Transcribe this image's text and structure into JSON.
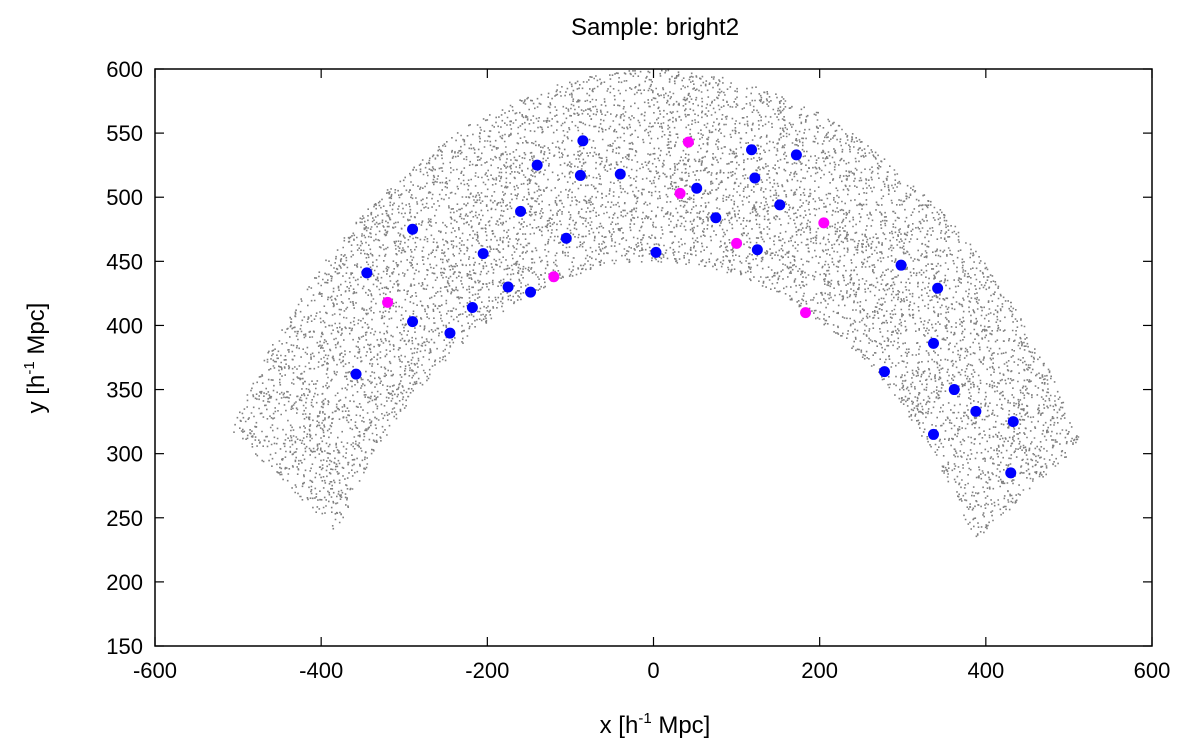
{
  "chart_data": {
    "type": "scatter",
    "title": "Sample: bright2",
    "xlabel": {
      "prefix": "x [h",
      "sup": "-1",
      "suffix": " Mpc]"
    },
    "ylabel": {
      "prefix": "y [h",
      "sup": "-1",
      "suffix": " Mpc]"
    },
    "xlim": [
      -600,
      600
    ],
    "ylim": [
      150,
      600
    ],
    "xticks": [
      -600,
      -400,
      -200,
      0,
      200,
      400,
      600
    ],
    "yticks": [
      150,
      200,
      250,
      300,
      350,
      400,
      450,
      500,
      550,
      600
    ],
    "grid": false,
    "legend": "none",
    "background_sample": {
      "shape": "annular sector",
      "center": [
        0,
        0
      ],
      "inner_radius": 450,
      "outer_radius": 600,
      "angle_range_deg": [
        31,
        148
      ],
      "color": "#808080"
    },
    "series": [
      {
        "color": "#0000ff",
        "points": [
          [
            -85,
            544
          ],
          [
            -140,
            525
          ],
          [
            -88,
            517
          ],
          [
            -40,
            518
          ],
          [
            -160,
            489
          ],
          [
            -105,
            468
          ],
          [
            -205,
            456
          ],
          [
            -290,
            475
          ],
          [
            -345,
            441
          ],
          [
            -175,
            430
          ],
          [
            -148,
            426
          ],
          [
            -218,
            414
          ],
          [
            -290,
            403
          ],
          [
            -245,
            394
          ],
          [
            -358,
            362
          ],
          [
            3,
            457
          ],
          [
            52,
            507
          ],
          [
            75,
            484
          ],
          [
            118,
            537
          ],
          [
            122,
            515
          ],
          [
            125,
            459
          ],
          [
            152,
            494
          ],
          [
            172,
            533
          ],
          [
            298,
            447
          ],
          [
            342,
            429
          ],
          [
            337,
            386
          ],
          [
            278,
            364
          ],
          [
            362,
            350
          ],
          [
            388,
            333
          ],
          [
            337,
            315
          ],
          [
            433,
            325
          ],
          [
            430,
            285
          ]
        ]
      },
      {
        "color": "#ff00ff",
        "points": [
          [
            42,
            543
          ],
          [
            32,
            503
          ],
          [
            100,
            464
          ],
          [
            205,
            480
          ],
          [
            183,
            410
          ],
          [
            -120,
            438
          ],
          [
            -320,
            418
          ]
        ]
      }
    ]
  }
}
